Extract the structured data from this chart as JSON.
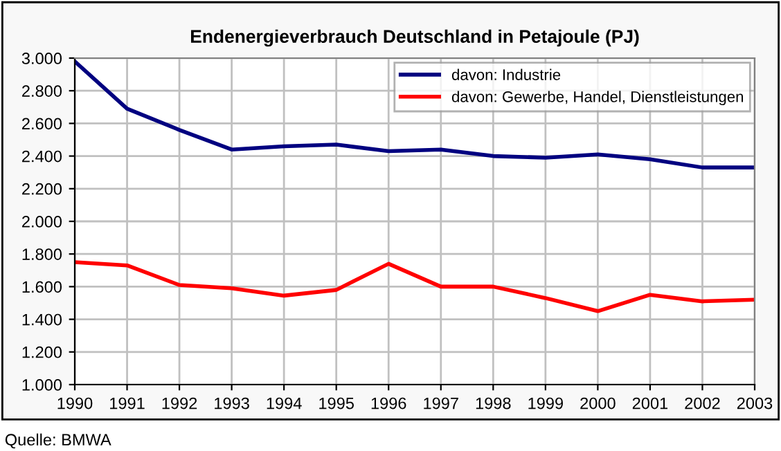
{
  "chart_data": {
    "type": "line",
    "title": "Endenergieverbrauch Deutschland in Petajoule (PJ)",
    "x": [
      1990,
      1991,
      1992,
      1993,
      1994,
      1995,
      1996,
      1997,
      1998,
      1999,
      2000,
      2001,
      2002,
      2003
    ],
    "series": [
      {
        "name": "davon: Industrie",
        "color": "#000080",
        "values": [
          2980,
          2690,
          2560,
          2440,
          2460,
          2470,
          2430,
          2440,
          2400,
          2390,
          2410,
          2380,
          2330,
          2330
        ]
      },
      {
        "name": "davon: Gewerbe, Handel, Dienstleistungen",
        "color": "#ff0000",
        "values": [
          1750,
          1730,
          1610,
          1590,
          1545,
          1580,
          1740,
          1600,
          1600,
          1530,
          1450,
          1550,
          1510,
          1520
        ]
      }
    ],
    "xlim": [
      1990,
      2003
    ],
    "xticks": [
      1990,
      1991,
      1992,
      1993,
      1994,
      1995,
      1996,
      1997,
      1998,
      1999,
      2000,
      2001,
      2002,
      2003
    ],
    "ylim": [
      1000,
      3000
    ],
    "yticks": [
      {
        "value": 1000,
        "label": "1.000"
      },
      {
        "value": 1200,
        "label": "1.200"
      },
      {
        "value": 1400,
        "label": "1.400"
      },
      {
        "value": 1600,
        "label": "1.600"
      },
      {
        "value": 1800,
        "label": "1.800"
      },
      {
        "value": 2000,
        "label": "2.000"
      },
      {
        "value": 2200,
        "label": "2.200"
      },
      {
        "value": 2400,
        "label": "2.400"
      },
      {
        "value": 2600,
        "label": "2.600"
      },
      {
        "value": 2800,
        "label": "2.800"
      },
      {
        "value": 3000,
        "label": "3.000"
      }
    ],
    "grid": true,
    "legend": "top right",
    "marker": "none",
    "line_style": "solid",
    "annotations": [
      "Quelle: BMWA"
    ]
  }
}
